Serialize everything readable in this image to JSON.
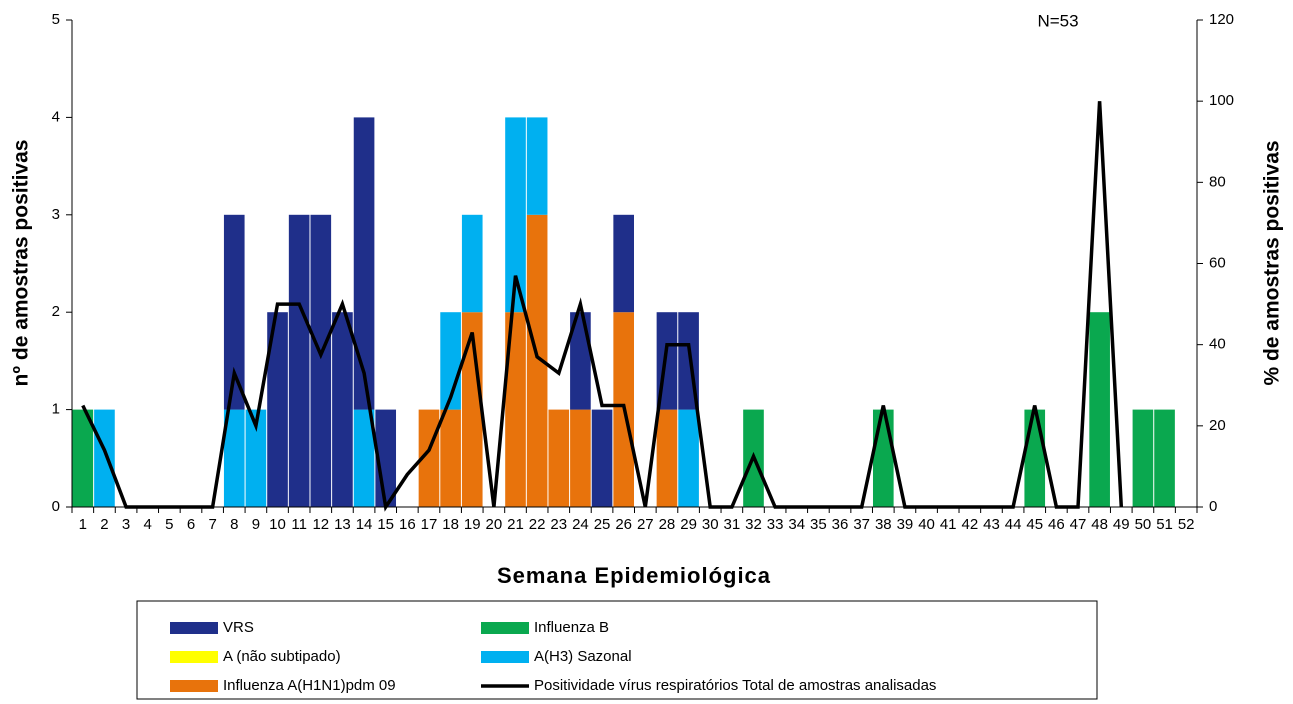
{
  "chart_data": {
    "type": "bar",
    "annotation": "N=53",
    "ylabel": "nº de amostras positivas",
    "y2label": "% de amostras positivas",
    "xlabel": "Semana Epidemiológica",
    "categories": [
      "1",
      "2",
      "3",
      "4",
      "5",
      "6",
      "7",
      "8",
      "9",
      "10",
      "11",
      "12",
      "13",
      "14",
      "15",
      "16",
      "17",
      "18",
      "19",
      "20",
      "21",
      "22",
      "23",
      "24",
      "25",
      "26",
      "27",
      "28",
      "29",
      "30",
      "31",
      "32",
      "33",
      "34",
      "35",
      "36",
      "37",
      "38",
      "39",
      "40",
      "41",
      "42",
      "43",
      "44",
      "45",
      "46",
      "47",
      "48",
      "49",
      "50",
      "51",
      "52"
    ],
    "ylim": [
      0,
      5
    ],
    "yticks": [
      0,
      1,
      2,
      3,
      4,
      5
    ],
    "y2lim": [
      0,
      120
    ],
    "y2ticks": [
      0,
      20,
      40,
      60,
      80,
      100,
      120
    ],
    "stacked": true,
    "series": [
      {
        "name": "VRS",
        "color": "#1f2f8a",
        "values": [
          0,
          0,
          0,
          0,
          0,
          0,
          0,
          2,
          0,
          2,
          3,
          3,
          2,
          3,
          1,
          0,
          0,
          0,
          0,
          0,
          0,
          0,
          0,
          1,
          1,
          1,
          0,
          1,
          1,
          0,
          0,
          0,
          0,
          0,
          0,
          0,
          0,
          0,
          0,
          0,
          0,
          0,
          0,
          0,
          0,
          0,
          0,
          0,
          0,
          0,
          0,
          0
        ]
      },
      {
        "name": "Influenza B",
        "color": "#0aa84f",
        "values": [
          1,
          0,
          0,
          0,
          0,
          0,
          0,
          0,
          0,
          0,
          0,
          0,
          0,
          0,
          0,
          0,
          0,
          0,
          0,
          0,
          0,
          0,
          0,
          0,
          0,
          0,
          0,
          0,
          0,
          0,
          0,
          1,
          0,
          0,
          0,
          0,
          0,
          1,
          0,
          0,
          0,
          0,
          0,
          0,
          1,
          0,
          0,
          2,
          0,
          1,
          1,
          0
        ]
      },
      {
        "name": "A (não subtipado)",
        "color": "#ffff00",
        "values": [
          0,
          0,
          0,
          0,
          0,
          0,
          0,
          0,
          0,
          0,
          0,
          0,
          0,
          0,
          0,
          0,
          0,
          0,
          0,
          0,
          0,
          0,
          0,
          0,
          0,
          0,
          0,
          0,
          0,
          0,
          0,
          0,
          0,
          0,
          0,
          0,
          0,
          0,
          0,
          0,
          0,
          0,
          0,
          0,
          0,
          0,
          0,
          0,
          0,
          0,
          0,
          0
        ]
      },
      {
        "name": "A(H3) Sazonal",
        "color": "#00b0f0",
        "values": [
          0,
          1,
          0,
          0,
          0,
          0,
          0,
          1,
          1,
          0,
          0,
          0,
          0,
          1,
          0,
          0,
          0,
          1,
          1,
          0,
          2,
          1,
          0,
          0,
          0,
          0,
          0,
          0,
          1,
          0,
          0,
          0,
          0,
          0,
          0,
          0,
          0,
          0,
          0,
          0,
          0,
          0,
          0,
          0,
          0,
          0,
          0,
          0,
          0,
          0,
          0,
          0
        ]
      },
      {
        "name": "Influenza A(H1N1)pdm 09",
        "color": "#e8730c",
        "values": [
          0,
          0,
          0,
          0,
          0,
          0,
          0,
          0,
          0,
          0,
          0,
          0,
          0,
          0,
          0,
          0,
          1,
          1,
          2,
          0,
          2,
          3,
          1,
          1,
          0,
          2,
          0,
          1,
          0,
          0,
          0,
          0,
          0,
          0,
          0,
          0,
          0,
          0,
          0,
          0,
          0,
          0,
          0,
          0,
          0,
          0,
          0,
          0,
          0,
          0,
          0,
          0
        ]
      },
      {
        "name": "Positividade vírus respiratórios Total de amostras analisadas",
        "type": "line",
        "axis": "y2",
        "color": "#000000",
        "values": [
          25,
          14,
          0,
          0,
          0,
          0,
          0,
          33,
          20,
          50,
          50,
          37.5,
          50,
          33,
          0,
          8,
          14,
          27,
          43,
          0,
          57,
          37,
          33,
          50,
          25,
          25,
          0,
          40,
          40,
          0,
          0,
          12.5,
          0,
          0,
          0,
          0,
          0,
          25,
          0,
          0,
          0,
          0,
          0,
          0,
          25,
          0,
          0,
          100,
          0,
          null,
          null,
          null
        ]
      }
    ]
  }
}
